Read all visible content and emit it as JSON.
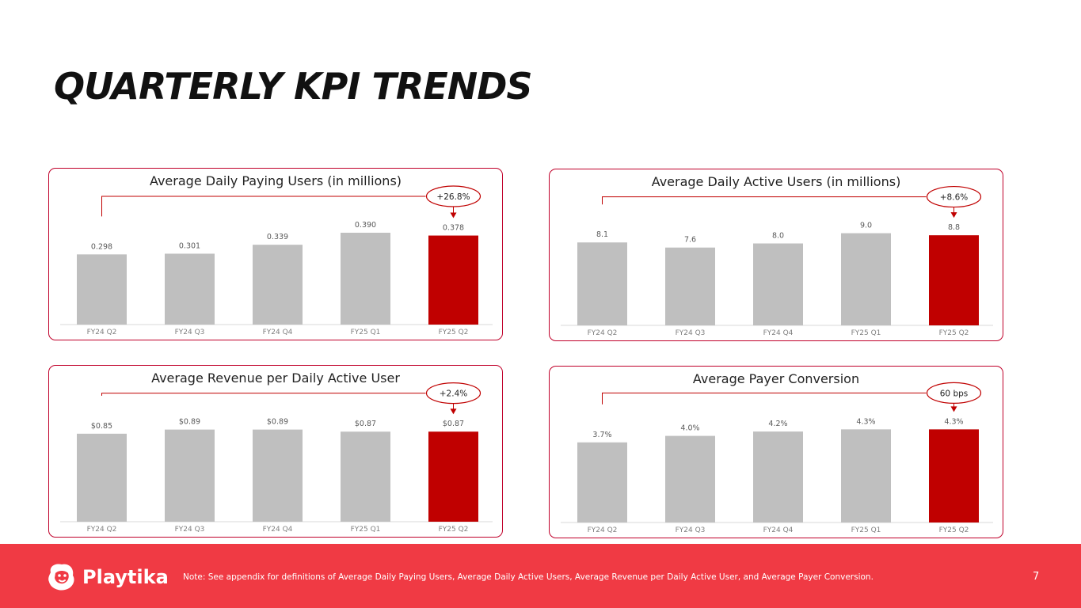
{
  "page": {
    "title": "QUARTERLY KPI TRENDS",
    "note": "Note:  See appendix for definitions of Average Daily Paying Users, Average Daily Active Users, Average Revenue per Daily Active User, and Average Payer Conversion.",
    "page_number": "7",
    "logo_text": "Playtika",
    "colors": {
      "accent": "#c00000",
      "bar": "#bfbfbf",
      "footer": "#f03a44",
      "border": "#c0002a"
    }
  },
  "chart_data": [
    {
      "type": "bar",
      "title": "Average Daily Paying Users (in millions)",
      "categories": [
        "FY24 Q2",
        "FY24 Q3",
        "FY24 Q4",
        "FY25 Q1",
        "FY25 Q2"
      ],
      "values": [
        0.298,
        0.301,
        0.339,
        0.39,
        0.378
      ],
      "labels": [
        "0.298",
        "0.301",
        "0.339",
        "0.390",
        "0.378"
      ],
      "highlight_index": 4,
      "change_label": "+26.8%",
      "ylim": [
        0,
        0.4
      ]
    },
    {
      "type": "bar",
      "title": "Average Daily Active Users (in millions)",
      "categories": [
        "FY24 Q2",
        "FY24 Q3",
        "FY24 Q4",
        "FY25 Q1",
        "FY25 Q2"
      ],
      "values": [
        8.1,
        7.6,
        8.0,
        9.0,
        8.8
      ],
      "labels": [
        "8.1",
        "7.6",
        "8.0",
        "9.0",
        "8.8"
      ],
      "highlight_index": 4,
      "change_label": "+8.6%",
      "ylim": [
        0,
        9.2
      ]
    },
    {
      "type": "bar",
      "title": "Average Revenue per Daily Active User",
      "categories": [
        "FY24 Q2",
        "FY24 Q3",
        "FY24 Q4",
        "FY25 Q1",
        "FY25 Q2"
      ],
      "values": [
        0.85,
        0.89,
        0.89,
        0.87,
        0.87
      ],
      "labels": [
        "$0.85",
        "$0.89",
        "$0.89",
        "$0.87",
        "$0.87"
      ],
      "highlight_index": 4,
      "change_label": "+2.4%",
      "ylim": [
        0,
        0.91
      ]
    },
    {
      "type": "bar",
      "title": "Average Payer Conversion",
      "categories": [
        "FY24 Q2",
        "FY24 Q3",
        "FY24 Q4",
        "FY25 Q1",
        "FY25 Q2"
      ],
      "values": [
        3.7,
        4.0,
        4.2,
        4.3,
        4.3
      ],
      "labels": [
        "3.7%",
        "4.0%",
        "4.2%",
        "4.3%",
        "4.3%"
      ],
      "highlight_index": 4,
      "change_label": "60 bps",
      "ylim": [
        0,
        4.35
      ]
    }
  ]
}
